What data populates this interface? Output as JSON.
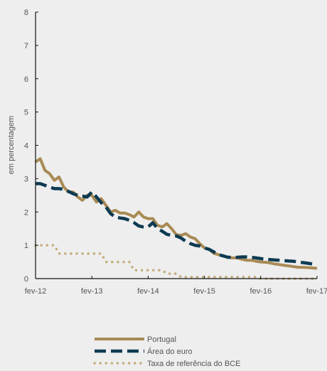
{
  "chart_data": {
    "type": "line",
    "ylabel": "em percentagem",
    "ylim": [
      0,
      8
    ],
    "yticks": [
      0,
      1,
      2,
      3,
      4,
      5,
      6,
      7,
      8
    ],
    "xlim": [
      0,
      60
    ],
    "xticks": [
      {
        "value": 0,
        "label": "fev-12"
      },
      {
        "value": 12,
        "label": "fev-13"
      },
      {
        "value": 24,
        "label": "fev-14"
      },
      {
        "value": 36,
        "label": "fev-15"
      },
      {
        "value": 48,
        "label": "fev-16"
      },
      {
        "value": 60,
        "label": "fev-17"
      }
    ],
    "grid": false,
    "legend_position": "bottom",
    "series": [
      {
        "name": "Portugal",
        "color": "#a88a54",
        "style": "solid",
        "x": [
          0,
          1,
          2,
          3,
          4,
          5,
          6,
          7,
          8,
          9,
          10,
          11,
          12,
          13,
          14,
          15,
          16,
          17,
          18,
          19,
          20,
          21,
          22,
          23,
          24,
          25,
          26,
          27,
          28,
          29,
          30,
          31,
          32,
          33,
          34,
          35,
          36,
          37,
          38,
          39,
          40,
          41,
          42,
          43,
          44,
          45,
          46,
          47,
          48,
          49,
          50,
          51,
          52,
          53,
          54,
          55,
          56,
          57,
          58,
          59,
          60
        ],
        "values": [
          3.5,
          3.6,
          3.25,
          3.15,
          2.95,
          3.05,
          2.75,
          2.6,
          2.6,
          2.45,
          2.35,
          2.5,
          2.5,
          2.3,
          2.4,
          2.2,
          2.0,
          2.05,
          1.97,
          1.97,
          1.92,
          1.85,
          2.0,
          1.85,
          1.8,
          1.8,
          1.6,
          1.55,
          1.65,
          1.5,
          1.32,
          1.3,
          1.35,
          1.25,
          1.2,
          1.05,
          0.92,
          0.88,
          0.76,
          0.72,
          0.68,
          0.64,
          0.62,
          0.62,
          0.58,
          0.55,
          0.55,
          0.52,
          0.5,
          0.49,
          0.47,
          0.44,
          0.42,
          0.4,
          0.38,
          0.36,
          0.34,
          0.34,
          0.33,
          0.32,
          0.31
        ]
      },
      {
        "name": "Área do euro",
        "color": "#0d3a52",
        "style": "dashed",
        "x": [
          0,
          1,
          2,
          3,
          4,
          5,
          6,
          7,
          8,
          9,
          10,
          11,
          12,
          13,
          14,
          15,
          16,
          17,
          18,
          19,
          20,
          21,
          22,
          23,
          24,
          25,
          26,
          27,
          28,
          29,
          30,
          31,
          32,
          33,
          34,
          35,
          36,
          37,
          38,
          39,
          40,
          41,
          42,
          43,
          44,
          45,
          46,
          47,
          48,
          49,
          50,
          51,
          52,
          53,
          54,
          55,
          56,
          57,
          58,
          59,
          60
        ],
        "values": [
          2.85,
          2.85,
          2.8,
          2.75,
          2.7,
          2.7,
          2.68,
          2.62,
          2.55,
          2.5,
          2.48,
          2.45,
          2.6,
          2.45,
          2.28,
          2.15,
          1.95,
          1.85,
          1.82,
          1.8,
          1.75,
          1.68,
          1.58,
          1.55,
          1.55,
          1.68,
          1.5,
          1.42,
          1.33,
          1.3,
          1.28,
          1.22,
          1.12,
          1.05,
          1.0,
          0.98,
          0.92,
          0.88,
          0.8,
          0.72,
          0.68,
          0.64,
          0.64,
          0.64,
          0.65,
          0.65,
          0.64,
          0.62,
          0.6,
          0.58,
          0.57,
          0.56,
          0.55,
          0.54,
          0.53,
          0.52,
          0.5,
          0.48,
          0.46,
          0.44,
          0.43
        ]
      },
      {
        "name": "Taxa de referência do BCE",
        "color": "#c4ad7e",
        "style": "dotted",
        "x": [
          0,
          1,
          2,
          3,
          4,
          5,
          6,
          7,
          8,
          9,
          10,
          11,
          12,
          13,
          14,
          15,
          16,
          17,
          18,
          19,
          20,
          21,
          22,
          23,
          24,
          25,
          26,
          27,
          28,
          29,
          30,
          31,
          32,
          33,
          34,
          35,
          36,
          37,
          38,
          39,
          40,
          41,
          42,
          43,
          44,
          45,
          46,
          47,
          48,
          49,
          50,
          51,
          52,
          53,
          54,
          55,
          56,
          57,
          58,
          59,
          60
        ],
        "values": [
          1.0,
          1.0,
          1.0,
          1.0,
          1.0,
          0.75,
          0.75,
          0.75,
          0.75,
          0.75,
          0.75,
          0.75,
          0.75,
          0.75,
          0.75,
          0.5,
          0.5,
          0.5,
          0.5,
          0.5,
          0.5,
          0.25,
          0.25,
          0.25,
          0.25,
          0.25,
          0.25,
          0.25,
          0.15,
          0.15,
          0.15,
          0.05,
          0.05,
          0.05,
          0.05,
          0.05,
          0.05,
          0.05,
          0.05,
          0.05,
          0.05,
          0.05,
          0.05,
          0.05,
          0.05,
          0.05,
          0.05,
          0.05,
          0.0,
          0.0,
          0.0,
          0.0,
          0.0,
          0.0,
          0.0,
          0.0,
          0.0,
          0.0,
          0.0,
          0.0,
          0.0
        ]
      }
    ]
  }
}
